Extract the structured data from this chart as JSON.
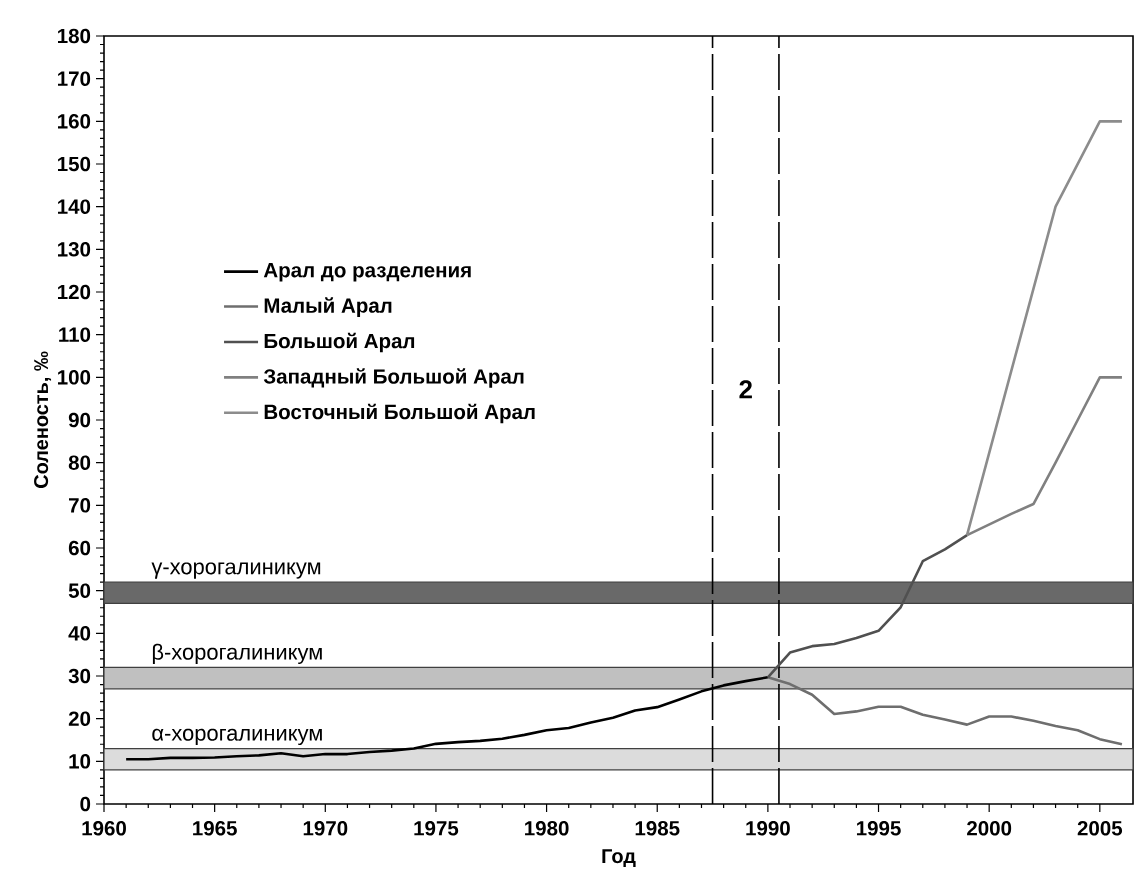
{
  "chart_data": {
    "type": "line",
    "xlabel": "Год",
    "ylabel": "Соленость, ‰",
    "xlim": [
      1960,
      2006.5
    ],
    "ylim": [
      0,
      180
    ],
    "xticks": [
      1960,
      1965,
      1970,
      1975,
      1980,
      1985,
      1990,
      1995,
      2000,
      2005
    ],
    "yticks": [
      0,
      10,
      20,
      30,
      40,
      50,
      60,
      70,
      80,
      90,
      100,
      110,
      120,
      130,
      140,
      150,
      160,
      170,
      180
    ],
    "legend": "left",
    "marker": "none",
    "line_style": "solid",
    "series": [
      {
        "name": "Арал до разделения",
        "color": "#000000",
        "x": [
          1961,
          1962,
          1963,
          1964,
          1965,
          1966,
          1967,
          1968,
          1969,
          1970,
          1971,
          1972,
          1973,
          1974,
          1975,
          1976,
          1977,
          1978,
          1979,
          1980,
          1981,
          1982,
          1983,
          1984,
          1985,
          1986,
          1987,
          1988,
          1989,
          1990
        ],
        "values": [
          10.5,
          10.5,
          10.8,
          10.8,
          10.9,
          11.2,
          11.4,
          11.9,
          11.2,
          11.7,
          11.7,
          12.2,
          12.5,
          13.0,
          14.1,
          14.5,
          14.8,
          15.3,
          16.2,
          17.3,
          17.8,
          19.1,
          20.2,
          21.9,
          22.7,
          24.5,
          26.4,
          27.8,
          28.8,
          29.7
        ]
      },
      {
        "name": "Малый Арал",
        "color": "#6e6e6e",
        "x": [
          1990,
          1991,
          1992,
          1993,
          1994,
          1995,
          1996,
          1997,
          1998,
          1999,
          2000,
          2001,
          2002,
          2003,
          2004,
          2005,
          2006
        ],
        "values": [
          29.7,
          28.1,
          25.6,
          21.1,
          21.7,
          22.8,
          22.8,
          20.9,
          19.8,
          18.6,
          20.5,
          20.5,
          19.5,
          18.3,
          17.3,
          15.2,
          14.0
        ]
      },
      {
        "name": "Большой Арал",
        "color": "#505050",
        "x": [
          1990,
          1991,
          1992,
          1993,
          1994,
          1995,
          1996,
          1997,
          1998,
          1999
        ],
        "values": [
          29.7,
          35.5,
          37.0,
          37.5,
          38.9,
          40.6,
          46.1,
          56.9,
          59.7,
          63.0
        ]
      },
      {
        "name": "Западный Большой Арал",
        "color": "#808080",
        "x": [
          1999,
          2000,
          2001,
          2002,
          2003,
          2004,
          2005,
          2006
        ],
        "values": [
          63.0,
          65.5,
          68.0,
          70.3,
          80,
          90,
          100,
          100
        ]
      },
      {
        "name": "Восточный Большой Арал",
        "color": "#8c8c8c",
        "x": [
          1999,
          2003,
          2005,
          2006
        ],
        "values": [
          63.0,
          140,
          160,
          160
        ]
      }
    ],
    "bands": [
      {
        "axis": "y",
        "from": 47,
        "to": 52,
        "label": "γ-хорогалиникум",
        "color": "#696969"
      },
      {
        "axis": "y",
        "from": 27,
        "to": 32,
        "label": "β-хорогалиникум",
        "color": "#c0c0c0"
      },
      {
        "axis": "y",
        "from": 8,
        "to": 13,
        "label": "α-хорогалиникум",
        "color": "#dcdcdc"
      }
    ],
    "ref_lines": [
      {
        "axis": "x",
        "value": 1987.5,
        "color": "#000000",
        "line_style": "dashed"
      },
      {
        "axis": "x",
        "value": 1990.5,
        "color": "#000000",
        "line_style": "dashed"
      }
    ],
    "annotations": [
      "2"
    ]
  }
}
